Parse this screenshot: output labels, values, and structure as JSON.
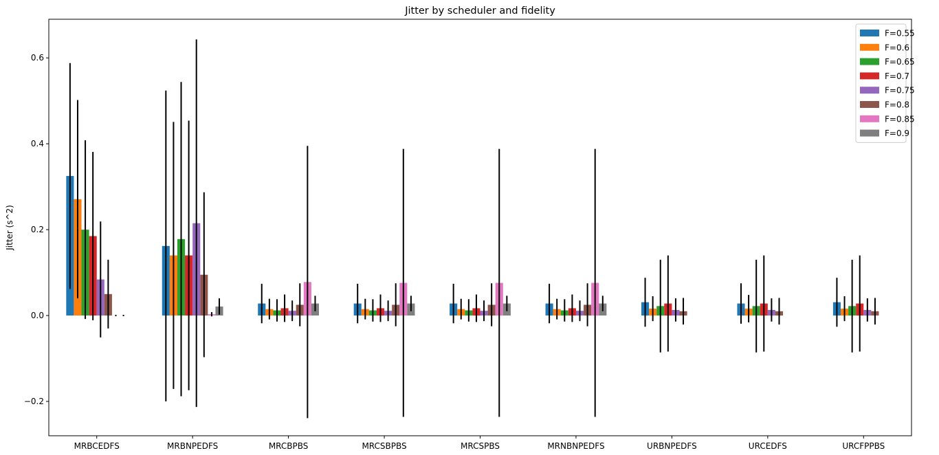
{
  "chart_data": {
    "type": "bar",
    "title": "Jitter by scheduler and fidelity",
    "xlabel": "",
    "ylabel": "Jitter (s^2)",
    "ylim": [
      -0.28,
      0.69
    ],
    "yticks": [
      -0.2,
      0.0,
      0.2,
      0.4,
      0.6
    ],
    "ytick_labels": [
      "−0.2",
      "0.0",
      "0.2",
      "0.4",
      "0.6"
    ],
    "grid": false,
    "legend_position": "top-right",
    "categories": [
      "MRBCEDFS",
      "MRBNPEDFS",
      "MRCBPBS",
      "MRCSBPBS",
      "MRCSPBS",
      "MRNBNPEDFS",
      "URBNPEDFS",
      "URCEDFS",
      "URCFPPBS"
    ],
    "series": [
      {
        "name": "F=0.55",
        "color": "#1f77b4",
        "values": [
          0.325,
          0.162,
          0.028,
          0.028,
          0.028,
          0.028,
          0.031,
          0.028,
          0.031
        ],
        "errors": [
          0.263,
          0.362,
          0.046,
          0.046,
          0.046,
          0.046,
          0.057,
          0.047,
          0.057
        ]
      },
      {
        "name": "F=0.6",
        "color": "#ff7f0e",
        "values": [
          0.271,
          0.14,
          0.015,
          0.015,
          0.015,
          0.015,
          0.016,
          0.016,
          0.016
        ],
        "errors": [
          0.231,
          0.311,
          0.024,
          0.024,
          0.024,
          0.024,
          0.029,
          0.032,
          0.029
        ]
      },
      {
        "name": "F=0.65",
        "color": "#2ca02c",
        "values": [
          0.2,
          0.178,
          0.012,
          0.012,
          0.012,
          0.012,
          0.022,
          0.022,
          0.022
        ],
        "errors": [
          0.208,
          0.366,
          0.026,
          0.026,
          0.026,
          0.026,
          0.108,
          0.108,
          0.108
        ]
      },
      {
        "name": "F=0.7",
        "color": "#d62728",
        "values": [
          0.185,
          0.14,
          0.017,
          0.017,
          0.017,
          0.017,
          0.028,
          0.028,
          0.028
        ],
        "errors": [
          0.196,
          0.314,
          0.032,
          0.032,
          0.032,
          0.032,
          0.112,
          0.112,
          0.112
        ]
      },
      {
        "name": "F=0.75",
        "color": "#9467bd",
        "values": [
          0.084,
          0.215,
          0.011,
          0.011,
          0.011,
          0.011,
          0.013,
          0.013,
          0.013
        ],
        "errors": [
          0.135,
          0.428,
          0.024,
          0.024,
          0.024,
          0.024,
          0.027,
          0.027,
          0.027
        ]
      },
      {
        "name": "F=0.8",
        "color": "#8c564b",
        "values": [
          0.05,
          0.095,
          0.025,
          0.025,
          0.025,
          0.025,
          0.01,
          0.01,
          0.01
        ],
        "errors": [
          0.08,
          0.192,
          0.05,
          0.05,
          0.05,
          0.05,
          0.031,
          0.031,
          0.031
        ]
      },
      {
        "name": "F=0.85",
        "color": "#e377c2",
        "values": [
          0.0,
          0.003,
          0.078,
          0.076,
          0.076,
          0.076,
          null,
          null,
          null
        ],
        "errors": [
          0.0,
          0.005,
          0.317,
          0.312,
          0.312,
          0.312,
          null,
          null,
          null
        ]
      },
      {
        "name": "F=0.9",
        "color": "#7f7f7f",
        "values": [
          0.0,
          0.021,
          0.028,
          0.028,
          0.028,
          0.028,
          null,
          null,
          null
        ],
        "errors": [
          0.0,
          0.019,
          0.018,
          0.018,
          0.018,
          0.018,
          null,
          null,
          null
        ]
      }
    ]
  }
}
